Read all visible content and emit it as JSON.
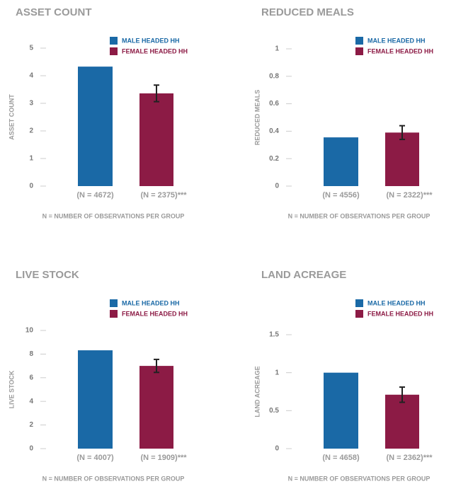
{
  "chart_data": [
    {
      "type": "bar",
      "title": "ASSET COUNT",
      "ylabel": "ASSET COUNT",
      "note": "N = NUMBER OF OBSERVATIONS PER GROUP",
      "categories": [
        "(N = 4672)",
        "(N = 2375)***"
      ],
      "series": [
        {
          "name": "MALE HEADED HH",
          "color": "#1a69a6",
          "values": [
            4.33,
            null
          ]
        },
        {
          "name": "FEMALE HEADED HH",
          "color": "#8c1b45",
          "values": [
            null,
            3.36
          ],
          "errors": [
            null,
            0.3
          ]
        }
      ],
      "ylim": [
        0,
        5
      ],
      "yticks": [
        0,
        1,
        2,
        3,
        4,
        5
      ]
    },
    {
      "type": "bar",
      "title": "REDUCED MEALS",
      "ylabel": "REDUCED MEALS",
      "note": "N = NUMBER OF OBSERVATIONS PER GROUP",
      "categories": [
        "(N = 4556)",
        "(N = 2322)***"
      ],
      "series": [
        {
          "name": "MALE HEADED HH",
          "color": "#1a69a6",
          "values": [
            0.355,
            null
          ]
        },
        {
          "name": "FEMALE HEADED HH",
          "color": "#8c1b45",
          "values": [
            null,
            0.39
          ],
          "errors": [
            null,
            0.05
          ]
        }
      ],
      "ylim": [
        0,
        1
      ],
      "yticks": [
        0,
        0.2,
        0.4,
        0.6,
        0.8,
        1
      ]
    },
    {
      "type": "bar",
      "title": "LIVE STOCK",
      "ylabel": "LIVE STOCK",
      "note": "N = NUMBER OF OBSERVATIONS PER GROUP",
      "categories": [
        "(N = 4007)",
        "(N = 1909)***"
      ],
      "series": [
        {
          "name": "MALE HEADED HH",
          "color": "#1a69a6",
          "values": [
            8.32,
            null
          ]
        },
        {
          "name": "FEMALE HEADED HH",
          "color": "#8c1b45",
          "values": [
            null,
            7.0
          ],
          "errors": [
            null,
            0.55
          ]
        }
      ],
      "ylim": [
        0,
        10
      ],
      "yticks": [
        0,
        2,
        4,
        6,
        8,
        10
      ]
    },
    {
      "type": "bar",
      "title": "LAND ACREAGE",
      "ylabel": "LAND ACREAGE",
      "note": "N = NUMBER OF OBSERVATIONS PER GROUP",
      "categories": [
        "(N = 4658)",
        "(N = 2362)***"
      ],
      "series": [
        {
          "name": "MALE HEADED HH",
          "color": "#1a69a6",
          "values": [
            1.0,
            null
          ]
        },
        {
          "name": "FEMALE HEADED HH",
          "color": "#8c1b45",
          "values": [
            null,
            0.71
          ],
          "errors": [
            null,
            0.1
          ]
        }
      ],
      "ylim": [
        0,
        1.5
      ],
      "yticks": [
        0,
        0.5,
        1,
        1.5
      ]
    }
  ]
}
